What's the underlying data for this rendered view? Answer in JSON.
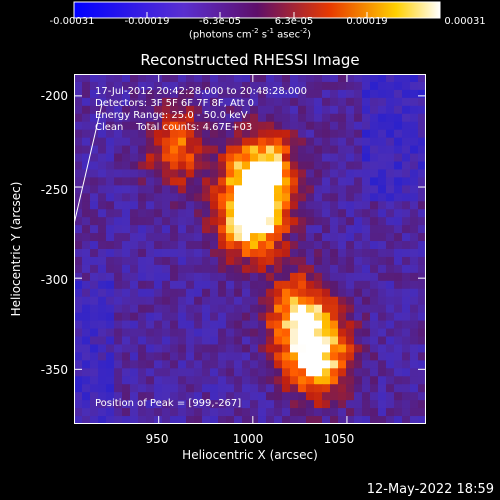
{
  "colorbar": {
    "ticks": [
      "-0.00031",
      "-0.00019",
      "-6.3e-05",
      "6.3e-05",
      "0.00019",
      "0.00031"
    ],
    "units_text": "(photons cm",
    "units_exp1": "-2",
    "units_mid": " s",
    "units_exp2": "-1",
    "units_mid2": " asec",
    "units_exp3": "-2",
    "units_end": ")",
    "range": [
      -0.00031,
      0.00031
    ]
  },
  "title": "Reconstructed RHESSI Image",
  "info": {
    "line1": "17-Jul-2012 20:42:28.000 to 20:48:28.000",
    "line2": "Detectors: 3F 5F 6F 7F 8F, Att 0",
    "line3": "Energy Range: 25.0 - 50.0 keV",
    "line4": "Clean    Total counts: 4.67E+03",
    "peak": "Position of Peak = [999,-267]"
  },
  "axes": {
    "xlabel": "Heliocentric X (arcsec)",
    "ylabel": "Heliocentric Y (arcsec)",
    "xticks": [
      "950",
      "1000",
      "1050"
    ],
    "yticks": [
      "-200",
      "-250",
      "-300",
      "-350"
    ]
  },
  "timestamp": "12-May-2022 18:59",
  "chart_data": {
    "type": "heatmap",
    "title": "Reconstructed RHESSI Image",
    "xlabel": "Heliocentric X (arcsec)",
    "ylabel": "Heliocentric Y (arcsec)",
    "xlim": [
      905,
      1092
    ],
    "ylim": [
      -380,
      -188
    ],
    "xticks": [
      950,
      1000,
      1050
    ],
    "yticks": [
      -200,
      -250,
      -300,
      -350
    ],
    "colormap": "hot (blue-purple-red-yellow-white)",
    "value_range": [
      -0.00031,
      0.00031
    ],
    "peak_position": [
      999,
      -267
    ],
    "bright_regions": [
      {
        "x": 999,
        "y": -267,
        "level": 1.0
      },
      {
        "x": 1005,
        "y": -240,
        "level": 0.85
      },
      {
        "x": 1035,
        "y": -345,
        "level": 0.8
      },
      {
        "x": 1025,
        "y": -320,
        "level": 0.75
      },
      {
        "x": 960,
        "y": -228,
        "level": 0.55
      }
    ]
  }
}
